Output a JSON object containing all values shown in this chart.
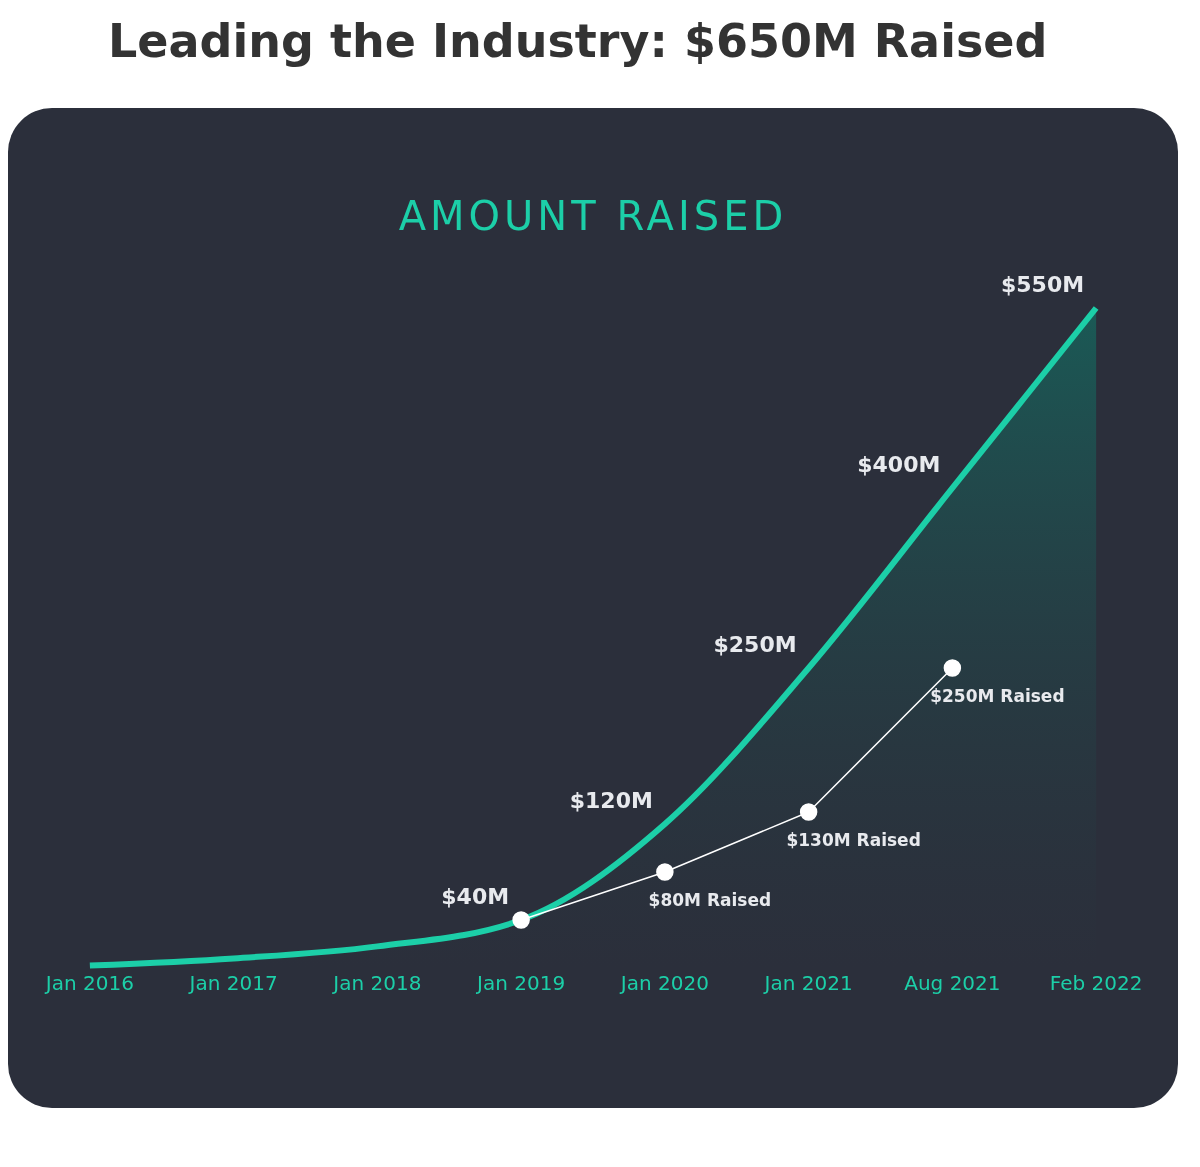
{
  "chart_data": {
    "type": "area",
    "title": "Leading the Industry: $650M Raised",
    "subtitle": "AMOUNT RAISED",
    "categories": [
      "Jan 2016",
      "Jan 2017",
      "Jan 2018",
      "Jan 2019",
      "Jan 2020",
      "Jan 2021",
      "Aug 2021",
      "Feb 2022"
    ],
    "series": [
      {
        "color": "#1ccfa8",
        "values": [
          2,
          8,
          18,
          40,
          120,
          250,
          400,
          550
        ],
        "value_labels": [
          null,
          null,
          null,
          "$40M",
          "$120M",
          "$250M",
          "$400M",
          "$550M"
        ]
      },
      {
        "type": "line",
        "color": "#ffffff",
        "marker": "circle",
        "values": [
          null,
          null,
          null,
          40,
          80,
          130,
          250,
          null
        ],
        "value_labels": [
          null,
          null,
          null,
          null,
          "$80M Raised",
          "$130M Raised",
          "$250M Raised",
          null
        ]
      }
    ],
    "tick_labels": "x",
    "grid": false
  }
}
